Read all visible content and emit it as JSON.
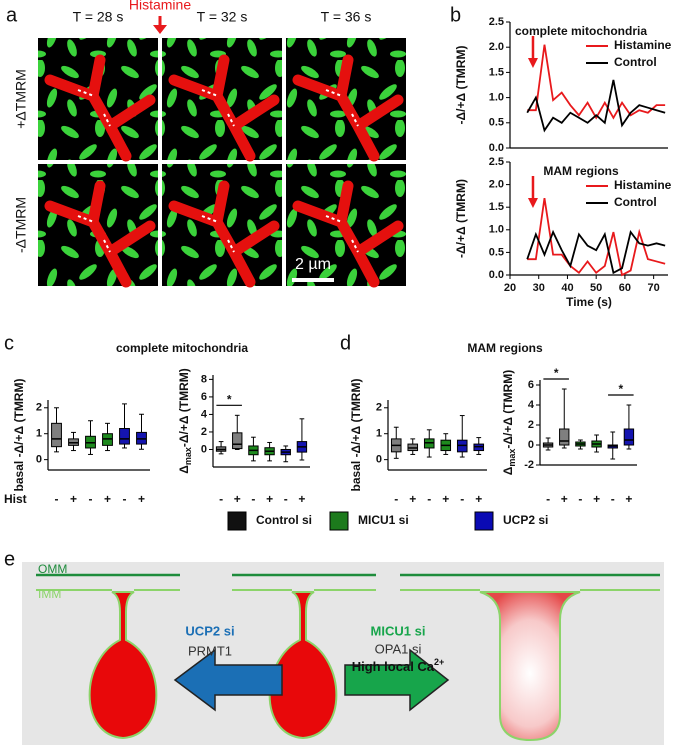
{
  "panel_labels": [
    "a",
    "b",
    "c",
    "d",
    "e"
  ],
  "panel_a": {
    "times": [
      "T = 28 s",
      "T = 32 s",
      "T = 36 s"
    ],
    "stimulus": "Histamine",
    "rows": [
      "+ΔTMRM",
      "-ΔTMRM"
    ],
    "scale_bar": "2 µm"
  },
  "panel_c_title": "complete mitochondria",
  "panel_d_title": "MAM regions",
  "box_legend": [
    {
      "name": "Control si",
      "color": "#111111"
    },
    {
      "name": "MICU1 si",
      "color": "#1c7a1c"
    },
    {
      "name": "UCP2 si",
      "color": "#0a0ab4"
    }
  ],
  "chart_data": [
    {
      "type": "line",
      "title": "complete mitochondria",
      "ylabel": "-Δ/+Δ (TMRM)",
      "x": [
        26,
        29,
        32,
        35,
        38,
        41,
        44,
        47,
        50,
        53,
        56,
        59,
        62,
        65,
        68,
        71,
        74
      ],
      "series": [
        {
          "name": "Histamine",
          "color": "#e8191c",
          "values": [
            0.75,
            0.75,
            2.05,
            0.95,
            1.1,
            0.85,
            0.65,
            0.9,
            0.6,
            0.9,
            0.6,
            0.9,
            0.65,
            0.75,
            0.7,
            0.85,
            0.85
          ]
        },
        {
          "name": "Control",
          "color": "#000000",
          "values": [
            0.7,
            1.0,
            0.35,
            0.6,
            0.5,
            0.7,
            0.6,
            0.5,
            0.65,
            0.5,
            1.35,
            0.45,
            0.7,
            0.85,
            0.8,
            0.75,
            0.7
          ]
        }
      ],
      "xlim": [
        20,
        75
      ],
      "ylim": [
        0,
        2.5
      ],
      "yticks": [
        {
          "value": 0,
          "label": "0.0"
        },
        0.5,
        {
          "value": 1,
          "label": "1.0"
        },
        1.5,
        {
          "value": 2,
          "label": "2.0"
        },
        2.5
      ],
      "event_x": 28,
      "legend": "upper right"
    },
    {
      "type": "line",
      "title": "MAM regions",
      "ylabel": "-Δ/+Δ (TMRM)",
      "xlabel": "Time (s)",
      "x": [
        26,
        29,
        32,
        35,
        38,
        41,
        44,
        47,
        50,
        53,
        56,
        59,
        62,
        65,
        68,
        71,
        74
      ],
      "series": [
        {
          "name": "Histamine",
          "color": "#e8191c",
          "values": [
            0.35,
            0.35,
            1.7,
            0.45,
            0.45,
            0.2,
            0.05,
            0.3,
            0.05,
            0.2,
            0.95,
            0.0,
            0.1,
            0.95,
            0.35,
            0.3,
            0.25
          ]
        },
        {
          "name": "Control",
          "color": "#000000",
          "values": [
            0.35,
            0.9,
            0.45,
            0.95,
            0.55,
            0.2,
            0.9,
            0.65,
            0.55,
            0.9,
            0.05,
            0.15,
            0.95,
            0.7,
            0.65,
            0.7,
            0.65
          ]
        }
      ],
      "xlim": [
        20,
        75
      ],
      "xticks": [
        20,
        30,
        40,
        50,
        60,
        70
      ],
      "ylim": [
        0,
        2.5
      ],
      "yticks": [
        {
          "value": 0,
          "label": "0.0"
        },
        0.5,
        {
          "value": 1,
          "label": "1.0"
        },
        1.5,
        {
          "value": 2,
          "label": "2.0"
        },
        2.5
      ],
      "event_x": 28,
      "legend": "upper right"
    },
    {
      "type": "box",
      "ylabel": [
        "basal -Δ/+Δ (TMRM)"
      ],
      "group_label": "Hist",
      "categories": [
        "-",
        "+",
        "-",
        "+",
        "-",
        "+"
      ],
      "colors": [
        "#7f7f7f",
        "#7f7f7f",
        "#1e8a1e",
        "#1e8a1e",
        "#1414b0",
        "#1414b0"
      ],
      "boxes": [
        {
          "low": 0.3,
          "q1": 0.5,
          "median": 0.8,
          "q3": 1.4,
          "high": 2.0
        },
        {
          "low": 0.35,
          "q1": 0.55,
          "median": 0.65,
          "q3": 0.8,
          "high": 1.05
        },
        {
          "low": 0.2,
          "q1": 0.45,
          "median": 0.65,
          "q3": 0.9,
          "high": 1.5
        },
        {
          "low": 0.35,
          "q1": 0.55,
          "median": 0.8,
          "q3": 1.0,
          "high": 1.4
        },
        {
          "low": 0.45,
          "q1": 0.6,
          "median": 0.8,
          "q3": 1.2,
          "high": 2.15
        },
        {
          "low": 0.4,
          "q1": 0.6,
          "median": 0.8,
          "q3": 1.05,
          "high": 1.75
        }
      ],
      "ylim": [
        -0.4,
        2.3
      ],
      "yticks": [
        0,
        1,
        2
      ],
      "significance": []
    },
    {
      "type": "box",
      "ylabel": [
        "Δ",
        "max",
        "-Δ/+Δ (TMRM)"
      ],
      "categories": [
        "-",
        "+",
        "-",
        "+",
        "-",
        "+"
      ],
      "colors": [
        "#7f7f7f",
        "#7f7f7f",
        "#1e8a1e",
        "#1e8a1e",
        "#1414b0",
        "#1414b0"
      ],
      "boxes": [
        {
          "low": -0.5,
          "q1": -0.2,
          "median": 0,
          "q3": 0.3,
          "high": 0.9
        },
        {
          "low": 0,
          "q1": 0.1,
          "median": 0.6,
          "q3": 1.9,
          "high": 3.9
        },
        {
          "low": -1.3,
          "q1": -0.6,
          "median": -0.1,
          "q3": 0.4,
          "high": 1.4
        },
        {
          "low": -1.3,
          "q1": -0.6,
          "median": -0.2,
          "q3": 0.2,
          "high": 0.8
        },
        {
          "low": -1.4,
          "q1": -0.6,
          "median": -0.3,
          "q3": 0,
          "high": 0.4
        },
        {
          "low": -1.2,
          "q1": -0.3,
          "median": 0.3,
          "q3": 0.9,
          "high": 3.5
        }
      ],
      "ylim": [
        -2,
        8.5
      ],
      "yticks": [
        0,
        2,
        4,
        6,
        8
      ],
      "significance": [
        {
          "label": "*",
          "groups": [
            0,
            1
          ]
        }
      ]
    },
    {
      "type": "box",
      "ylabel": [
        "basal -Δ/+Δ (TMRM)"
      ],
      "categories": [
        "-",
        "+",
        "-",
        "+",
        "-",
        "+"
      ],
      "colors": [
        "#7f7f7f",
        "#7f7f7f",
        "#1e8a1e",
        "#1e8a1e",
        "#1414b0",
        "#1414b0"
      ],
      "boxes": [
        {
          "low": 0.05,
          "q1": 0.3,
          "median": 0.55,
          "q3": 0.8,
          "high": 1.25
        },
        {
          "low": 0.2,
          "q1": 0.35,
          "median": 0.45,
          "q3": 0.6,
          "high": 0.8
        },
        {
          "low": 0.1,
          "q1": 0.45,
          "median": 0.65,
          "q3": 0.8,
          "high": 1.15
        },
        {
          "low": 0.2,
          "q1": 0.35,
          "median": 0.55,
          "q3": 0.75,
          "high": 1.0
        },
        {
          "low": 0.1,
          "q1": 0.3,
          "median": 0.55,
          "q3": 0.75,
          "high": 1.7
        },
        {
          "low": 0.2,
          "q1": 0.35,
          "median": 0.5,
          "q3": 0.6,
          "high": 0.85
        }
      ],
      "ylim": [
        -0.4,
        2.3
      ],
      "yticks": [
        0,
        1,
        2
      ],
      "significance": []
    },
    {
      "type": "box",
      "ylabel": [
        "Δ",
        "max",
        "-Δ/+Δ (TMRM)"
      ],
      "categories": [
        "-",
        "+",
        "-",
        "+",
        "-",
        "+"
      ],
      "colors": [
        "#7f7f7f",
        "#7f7f7f",
        "#1e8a1e",
        "#1e8a1e",
        "#1414b0",
        "#1414b0"
      ],
      "boxes": [
        {
          "low": -0.5,
          "q1": -0.2,
          "median": 0,
          "q3": 0.2,
          "high": 0.7
        },
        {
          "low": -0.3,
          "q1": 0,
          "median": 0.4,
          "q3": 1.6,
          "high": 5.6
        },
        {
          "low": -0.4,
          "q1": -0.1,
          "median": 0.1,
          "q3": 0.3,
          "high": 0.5
        },
        {
          "low": -0.7,
          "q1": -0.2,
          "median": 0.1,
          "q3": 0.4,
          "high": 1.0
        },
        {
          "low": -1.4,
          "q1": -0.3,
          "median": -0.1,
          "q3": 0,
          "high": 1.3
        },
        {
          "low": -0.4,
          "q1": 0,
          "median": 0.5,
          "q3": 1.6,
          "high": 4.0
        }
      ],
      "ylim": [
        -2,
        6.5
      ],
      "yticks": [
        -2,
        0,
        2,
        4,
        6
      ],
      "significance": [
        {
          "label": "*",
          "groups": [
            0,
            1
          ]
        },
        {
          "label": "*",
          "groups": [
            4,
            5
          ]
        }
      ]
    }
  ],
  "diagram": {
    "omm": "OMM",
    "imm": "IMM",
    "left_arrow": [
      "UCP2 si",
      "PRMT1"
    ],
    "right_arrow": [
      "MICU1 si",
      "OPA1 si"
    ],
    "calcium": [
      "High local Ca",
      "2+"
    ]
  }
}
